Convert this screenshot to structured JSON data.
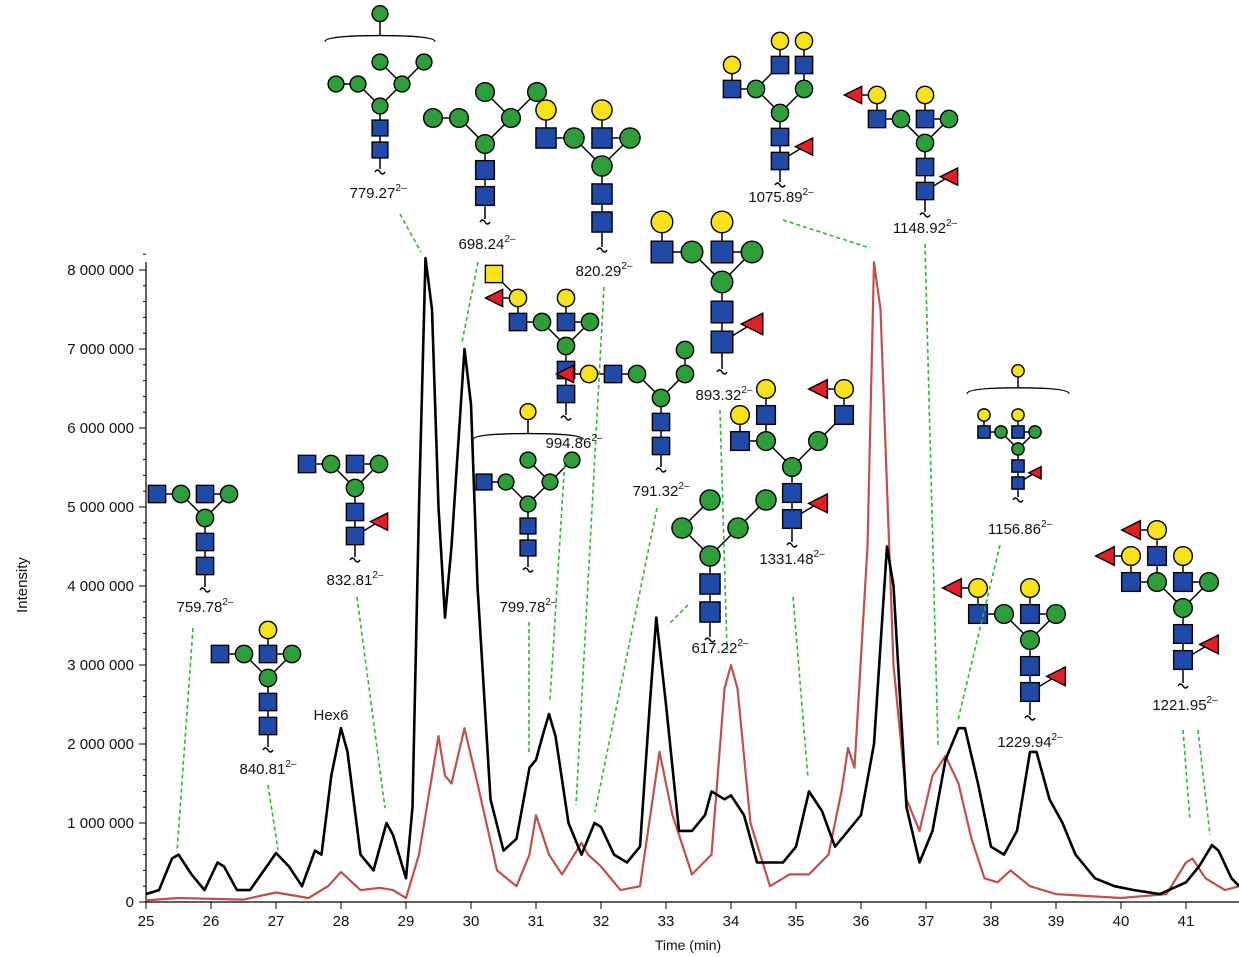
{
  "chart_data": {
    "type": "line",
    "xlabel": "Time (min)",
    "ylabel": "Intensity",
    "xlim": [
      25,
      41.82
    ],
    "ylim": [
      0,
      8200000
    ],
    "xticks": [
      25,
      26,
      27,
      28,
      29,
      30,
      31,
      32,
      33,
      34,
      35,
      36,
      37,
      38,
      39,
      40,
      41
    ],
    "yticks": [
      0,
      {
        "value": 1000000,
        "label": "1 000 000"
      },
      {
        "value": 2000000,
        "label": "2 000 000"
      },
      {
        "value": 3000000,
        "label": "3 000 000"
      },
      {
        "value": 4000000,
        "label": "4 000 000"
      },
      {
        "value": 5000000,
        "label": "5 000 000"
      },
      {
        "value": 6000000,
        "label": "6 000 000"
      },
      {
        "value": 7000000,
        "label": "7 000 000"
      },
      {
        "value": 8000000,
        "label": "8 000 000"
      }
    ],
    "series": [
      {
        "color": "#000000",
        "x": [
          25.0,
          25.2,
          25.4,
          25.5,
          25.7,
          25.9,
          26.1,
          26.2,
          26.4,
          26.6,
          26.9,
          27.0,
          27.2,
          27.4,
          27.6,
          27.7,
          27.85,
          28.0,
          28.1,
          28.3,
          28.5,
          28.7,
          28.8,
          29.0,
          29.1,
          29.2,
          29.3,
          29.4,
          29.5,
          29.6,
          29.7,
          29.9,
          30.0,
          30.1,
          30.3,
          30.5,
          30.7,
          30.9,
          31.0,
          31.1,
          31.2,
          31.3,
          31.5,
          31.7,
          31.9,
          32.0,
          32.2,
          32.4,
          32.6,
          32.75,
          32.85,
          33.0,
          33.2,
          33.4,
          33.6,
          33.7,
          33.9,
          34.0,
          34.2,
          34.4,
          34.6,
          34.8,
          35.0,
          35.2,
          35.4,
          35.6,
          35.8,
          36.0,
          36.2,
          36.4,
          36.5,
          36.7,
          36.9,
          37.1,
          37.3,
          37.5,
          37.6,
          37.8,
          38.0,
          38.2,
          38.4,
          38.6,
          38.7,
          38.9,
          39.1,
          39.3,
          39.6,
          39.9,
          40.2,
          40.6,
          41.0,
          41.2,
          41.4,
          41.5,
          41.7,
          41.82
        ],
        "values": [
          100000,
          150000,
          550000,
          600000,
          350000,
          150000,
          500000,
          450000,
          150000,
          150000,
          500000,
          620000,
          450000,
          200000,
          650000,
          600000,
          1600000,
          2200000,
          1900000,
          600000,
          400000,
          1000000,
          850000,
          300000,
          1200000,
          5000000,
          8150000,
          7500000,
          5000000,
          3600000,
          4500000,
          7000000,
          6300000,
          4000000,
          1300000,
          650000,
          800000,
          1700000,
          1800000,
          2100000,
          2380000,
          2100000,
          1000000,
          600000,
          1000000,
          950000,
          600000,
          500000,
          700000,
          2500000,
          3600000,
          2500000,
          900000,
          900000,
          1100000,
          1400000,
          1300000,
          1350000,
          1100000,
          500000,
          500000,
          500000,
          700000,
          1400000,
          1150000,
          700000,
          900000,
          1100000,
          2000000,
          4500000,
          4000000,
          1200000,
          500000,
          900000,
          1800000,
          2200000,
          2200000,
          1500000,
          700000,
          600000,
          900000,
          1900000,
          1900000,
          1300000,
          1000000,
          600000,
          300000,
          200000,
          150000,
          100000,
          250000,
          450000,
          720000,
          650000,
          300000,
          200000
        ]
      },
      {
        "color": "#c0504d",
        "x": [
          25.0,
          25.5,
          26.5,
          27.0,
          27.5,
          27.8,
          28.0,
          28.3,
          28.6,
          28.8,
          29.0,
          29.2,
          29.5,
          29.6,
          29.7,
          29.9,
          30.1,
          30.4,
          30.7,
          30.9,
          31.0,
          31.2,
          31.4,
          31.7,
          31.8,
          32.0,
          32.3,
          32.6,
          32.9,
          33.1,
          33.4,
          33.7,
          33.9,
          34.0,
          34.1,
          34.3,
          34.6,
          34.9,
          35.2,
          35.5,
          35.7,
          35.8,
          35.9,
          36.1,
          36.2,
          36.3,
          36.5,
          36.7,
          36.9,
          37.1,
          37.3,
          37.5,
          37.7,
          37.9,
          38.1,
          38.3,
          38.6,
          39.0,
          40.0,
          40.7,
          41.0,
          41.1,
          41.3,
          41.6,
          41.82
        ],
        "values": [
          20000,
          50000,
          30000,
          120000,
          50000,
          200000,
          380000,
          150000,
          180000,
          150000,
          50000,
          600000,
          2100000,
          1600000,
          1500000,
          2200000,
          1500000,
          400000,
          200000,
          600000,
          1100000,
          600000,
          350000,
          750000,
          600000,
          450000,
          150000,
          200000,
          1900000,
          1100000,
          350000,
          600000,
          2700000,
          3000000,
          2700000,
          1000000,
          200000,
          350000,
          350000,
          600000,
          1400000,
          1950000,
          1700000,
          4500000,
          8100000,
          7500000,
          3000000,
          1300000,
          900000,
          1600000,
          1850000,
          1500000,
          800000,
          300000,
          250000,
          400000,
          200000,
          100000,
          50000,
          100000,
          500000,
          550000,
          300000,
          150000,
          200000
        ]
      }
    ],
    "annotations": [
      {
        "text": "759.78",
        "charge": "2–"
      },
      {
        "text": "840.81",
        "charge": "2–"
      },
      {
        "text": "832.81",
        "charge": "2–"
      },
      {
        "text": "779.27",
        "charge": "2–"
      },
      {
        "text": "698.24",
        "charge": "2–"
      },
      {
        "text": "994.86",
        "charge": "2–"
      },
      {
        "text": "799.78",
        "charge": "2–"
      },
      {
        "text": "820.29",
        "charge": "2–"
      },
      {
        "text": "791.32",
        "charge": "2–"
      },
      {
        "text": "617.22",
        "charge": "2–"
      },
      {
        "text": "893.32",
        "charge": "2–"
      },
      {
        "text": "1331.48",
        "charge": "2–"
      },
      {
        "text": "1075.89",
        "charge": "2–"
      },
      {
        "text": "1148.92",
        "charge": "2–"
      },
      {
        "text": "1156.86",
        "charge": "2–"
      },
      {
        "text": "1229.94",
        "charge": "2–"
      },
      {
        "text": "1221.95",
        "charge": "2–"
      },
      {
        "text": "Hex6"
      }
    ]
  }
}
